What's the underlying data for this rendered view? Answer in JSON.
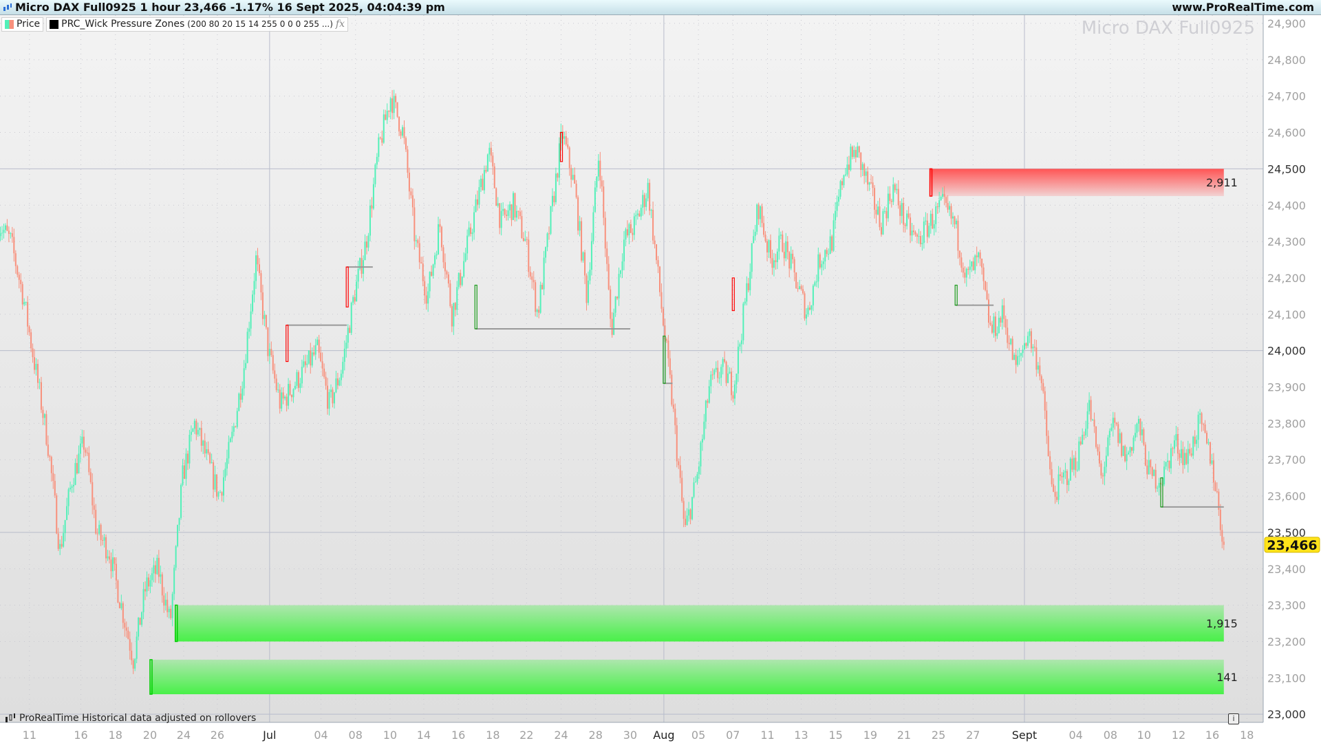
{
  "header": {
    "title": "Micro DAX Full0925 1 hour 23,466 -1.17% 16 Sept 2025, 04:04:39 pm",
    "site": "www.ProRealTime.com",
    "icon": "candlestick-icon"
  },
  "legend": {
    "price_label": "Price",
    "indicator_name": "PRC_Wick Pressure Zones",
    "indicator_params": "(200 80 20 15 14 255 0 0 0 255 ...)",
    "fx_icon": "fx"
  },
  "watermark": "Micro DAX Full0925",
  "footer": {
    "note": "ProRealTime Historical data adjusted on rollovers",
    "info_icon": "i"
  },
  "colors": {
    "up": "#52f0b8",
    "down": "#f8907c",
    "supply_zone": "#ff5a5a",
    "demand_zone": "#4cf04c",
    "price_badge": "#ffe31a"
  },
  "chart_data": {
    "type": "candlestick",
    "ylim": [
      23000,
      24900
    ],
    "y_ticks": [
      {
        "v": 24900,
        "label": "24,900"
      },
      {
        "v": 24800,
        "label": "24,800"
      },
      {
        "v": 24700,
        "label": "24,700"
      },
      {
        "v": 24600,
        "label": "24,600"
      },
      {
        "v": 24500,
        "label": "24,500",
        "major": true
      },
      {
        "v": 24400,
        "label": "24,400"
      },
      {
        "v": 24300,
        "label": "24,300"
      },
      {
        "v": 24200,
        "label": "24,200"
      },
      {
        "v": 24100,
        "label": "24,100"
      },
      {
        "v": 24000,
        "label": "24,000",
        "major": true
      },
      {
        "v": 23900,
        "label": "23,900"
      },
      {
        "v": 23800,
        "label": "23,800"
      },
      {
        "v": 23700,
        "label": "23,700"
      },
      {
        "v": 23600,
        "label": "23,600"
      },
      {
        "v": 23500,
        "label": "23,500",
        "major": true
      },
      {
        "v": 23400,
        "label": "23,400"
      },
      {
        "v": 23300,
        "label": "23,300"
      },
      {
        "v": 23200,
        "label": "23,200"
      },
      {
        "v": 23100,
        "label": "23,100"
      },
      {
        "v": 23000,
        "label": "23,000",
        "major": true
      }
    ],
    "x_ticks": [
      {
        "label": "11",
        "date": "2025-06-11"
      },
      {
        "label": "16",
        "date": "2025-06-16"
      },
      {
        "label": "18",
        "date": "2025-06-18"
      },
      {
        "label": "20",
        "date": "2025-06-20"
      },
      {
        "label": "24",
        "date": "2025-06-24"
      },
      {
        "label": "26",
        "date": "2025-06-26"
      },
      {
        "label": "Jul",
        "date": "2025-07-01",
        "month": true
      },
      {
        "label": "04",
        "date": "2025-07-04"
      },
      {
        "label": "08",
        "date": "2025-07-08"
      },
      {
        "label": "10",
        "date": "2025-07-10"
      },
      {
        "label": "14",
        "date": "2025-07-14"
      },
      {
        "label": "16",
        "date": "2025-07-16"
      },
      {
        "label": "18",
        "date": "2025-07-18"
      },
      {
        "label": "22",
        "date": "2025-07-22"
      },
      {
        "label": "24",
        "date": "2025-07-24"
      },
      {
        "label": "28",
        "date": "2025-07-28"
      },
      {
        "label": "30",
        "date": "2025-07-30"
      },
      {
        "label": "Aug",
        "date": "2025-08-01",
        "month": true
      },
      {
        "label": "05",
        "date": "2025-08-05"
      },
      {
        "label": "07",
        "date": "2025-08-07"
      },
      {
        "label": "11",
        "date": "2025-08-11"
      },
      {
        "label": "13",
        "date": "2025-08-13"
      },
      {
        "label": "15",
        "date": "2025-08-15"
      },
      {
        "label": "19",
        "date": "2025-08-19"
      },
      {
        "label": "21",
        "date": "2025-08-21"
      },
      {
        "label": "25",
        "date": "2025-08-25"
      },
      {
        "label": "27",
        "date": "2025-08-27"
      },
      {
        "label": "Sept",
        "date": "2025-09-01",
        "month": true
      },
      {
        "label": "04",
        "date": "2025-09-04"
      },
      {
        "label": "08",
        "date": "2025-09-08"
      },
      {
        "label": "10",
        "date": "2025-09-10"
      },
      {
        "label": "12",
        "date": "2025-09-12"
      },
      {
        "label": "16",
        "date": "2025-09-16"
      },
      {
        "label": "18",
        "date": "2025-09-18"
      }
    ],
    "closes_start": "2025-06-08",
    "closes_end": "2025-09-16T16:00",
    "closes": [
      24350,
      24300,
      24150,
      23950,
      23750,
      23450,
      23650,
      23750,
      23500,
      23450,
      23300,
      23150,
      23350,
      23400,
      23250,
      23650,
      23800,
      23700,
      23600,
      23750,
      23950,
      24250,
      24000,
      23850,
      23900,
      23950,
      24000,
      23850,
      23950,
      24150,
      24300,
      24550,
      24700,
      24600,
      24300,
      24150,
      24350,
      24100,
      24250,
      24400,
      24550,
      24350,
      24400,
      24300,
      24100,
      24350,
      24600,
      24450,
      24150,
      24550,
      24050,
      24300,
      24350,
      24450,
      24150,
      23850,
      23500,
      23650,
      23900,
      23950,
      23900,
      24150,
      24400,
      24250,
      24300,
      24200,
      24100,
      24250,
      24300,
      24500,
      24550,
      24450,
      24350,
      24450,
      24350,
      24300,
      24350,
      24400,
      24350,
      24200,
      24250,
      24050,
      24100,
      23950,
      24050,
      23950,
      23600,
      23650,
      23700,
      23850,
      23650,
      23800,
      23700,
      23800,
      23650,
      23650,
      23750,
      23700,
      23800,
      23700,
      23466
    ],
    "last_price": {
      "value": 23466,
      "label": "23,466"
    },
    "zones": [
      {
        "kind": "supply",
        "from": "2025-08-24",
        "to": "2025-09-16T16:00",
        "top": 24500,
        "bottom": 24425,
        "label": "2,911"
      },
      {
        "kind": "demand",
        "from": "2025-06-23",
        "to": "2025-09-16T16:00",
        "top": 23300,
        "bottom": 23200,
        "label": "1,915"
      },
      {
        "kind": "demand",
        "from": "2025-06-20",
        "to": "2025-09-16T16:00",
        "top": 23150,
        "bottom": 23055,
        "label": "141"
      }
    ],
    "levels": [
      {
        "from": "2025-07-02",
        "to": "2025-07-07",
        "price": 24070,
        "mark_top": 24070,
        "mark_bottom": 23970,
        "mark": "down"
      },
      {
        "from": "2025-07-07",
        "to": "2025-07-09",
        "price": 24230,
        "mark_top": 24230,
        "mark_bottom": 24120,
        "mark": "down"
      },
      {
        "from": "2025-07-17",
        "to": "2025-07-30",
        "price": 24060,
        "mark_top": 24180,
        "mark_bottom": 24060,
        "mark": "up"
      },
      {
        "from": "2025-08-01",
        "to": "2025-08-02",
        "price": 23910,
        "mark_top": 24040,
        "mark_bottom": 23910,
        "mark": "up"
      },
      {
        "from": "2025-08-26",
        "to": "2025-08-29",
        "price": 24125,
        "mark_top": 24180,
        "mark_bottom": 24125,
        "mark": "up"
      },
      {
        "from": "2025-09-11",
        "to": "2025-09-16T16:00",
        "price": 23570,
        "mark_top": 23650,
        "mark_bottom": 23570,
        "mark": "up"
      }
    ],
    "marks": [
      {
        "date": "2025-07-24",
        "top": 24600,
        "bottom": 24520,
        "kind": "down"
      },
      {
        "date": "2025-08-07",
        "top": 24200,
        "bottom": 24110,
        "kind": "down"
      }
    ]
  }
}
